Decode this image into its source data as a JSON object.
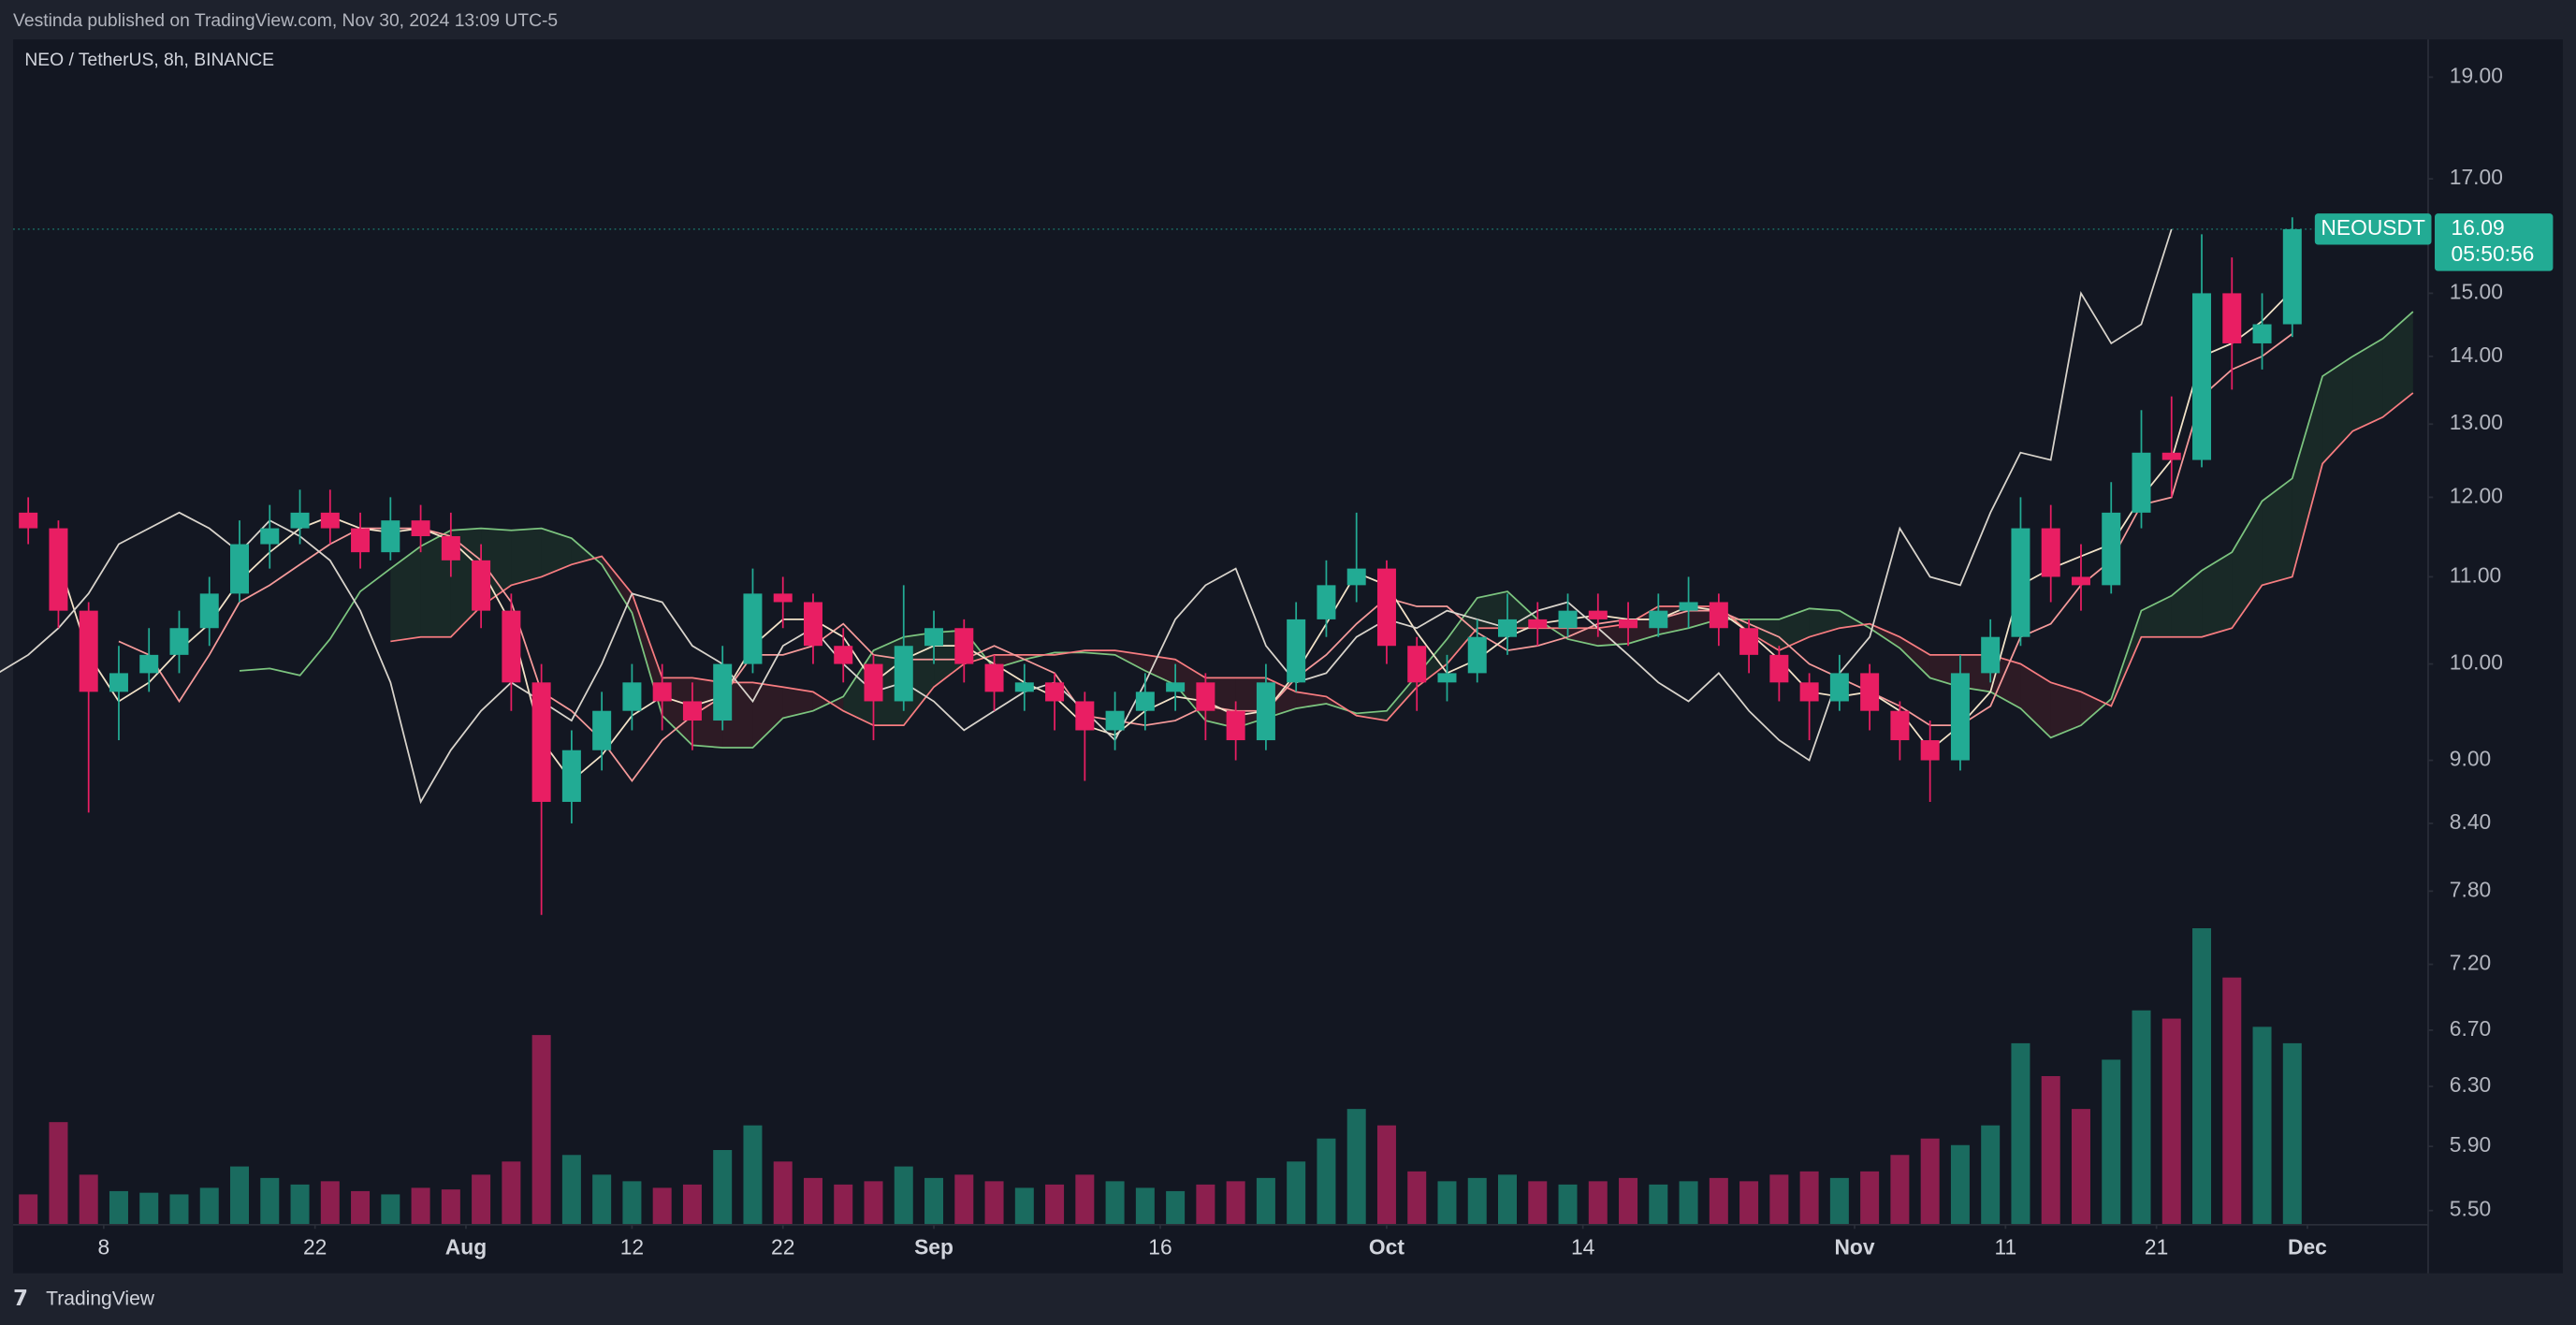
{
  "header": {
    "published": "Vestinda published on TradingView.com, Nov 30, 2024 13:09 UTC-5"
  },
  "footer": {
    "brand": "TradingView"
  },
  "chart_data": {
    "type": "candlestick",
    "title": "NEO / TetherUS, 8h, BINANCE",
    "symbol": "NEOUSDT",
    "countdown": "05:50:56",
    "x": [
      "2024-07-02",
      "2024-07-04",
      "2024-07-06",
      "2024-07-08",
      "2024-07-10",
      "2024-07-12",
      "2024-07-14",
      "2024-07-16",
      "2024-07-18",
      "2024-07-20",
      "2024-07-22",
      "2024-07-24",
      "2024-07-26",
      "2024-07-28",
      "2024-07-30",
      "2024-08-01",
      "2024-08-03",
      "2024-08-05",
      "2024-08-07",
      "2024-08-09",
      "2024-08-11",
      "2024-08-13",
      "2024-08-15",
      "2024-08-17",
      "2024-08-19",
      "2024-08-21",
      "2024-08-23",
      "2024-08-25",
      "2024-08-27",
      "2024-08-29",
      "2024-08-31",
      "2024-09-02",
      "2024-09-04",
      "2024-09-06",
      "2024-09-08",
      "2024-09-10",
      "2024-09-12",
      "2024-09-14",
      "2024-09-16",
      "2024-09-18",
      "2024-09-20",
      "2024-09-22",
      "2024-09-24",
      "2024-09-26",
      "2024-09-28",
      "2024-09-30",
      "2024-10-02",
      "2024-10-04",
      "2024-10-06",
      "2024-10-08",
      "2024-10-10",
      "2024-10-12",
      "2024-10-14",
      "2024-10-16",
      "2024-10-18",
      "2024-10-20",
      "2024-10-22",
      "2024-10-24",
      "2024-10-26",
      "2024-10-28",
      "2024-10-30",
      "2024-11-01",
      "2024-11-03",
      "2024-11-05",
      "2024-11-07",
      "2024-11-09",
      "2024-11-11",
      "2024-11-13",
      "2024-11-15",
      "2024-11-17",
      "2024-11-19",
      "2024-11-21",
      "2024-11-23",
      "2024-11-25",
      "2024-11-27",
      "2024-11-29"
    ],
    "open": [
      11.8,
      11.6,
      10.6,
      9.7,
      9.9,
      10.1,
      10.4,
      10.8,
      11.4,
      11.6,
      11.8,
      11.6,
      11.3,
      11.7,
      11.5,
      11.2,
      10.6,
      9.8,
      8.6,
      9.1,
      9.5,
      9.8,
      9.6,
      9.4,
      10.0,
      10.8,
      10.7,
      10.2,
      10.0,
      9.6,
      10.2,
      10.4,
      10.0,
      9.7,
      9.8,
      9.6,
      9.3,
      9.5,
      9.7,
      9.8,
      9.5,
      9.2,
      9.8,
      10.5,
      10.9,
      11.1,
      10.2,
      9.8,
      9.9,
      10.3,
      10.5,
      10.4,
      10.6,
      10.5,
      10.4,
      10.6,
      10.7,
      10.4,
      10.1,
      9.8,
      9.6,
      9.9,
      9.5,
      9.2,
      9.0,
      9.9,
      10.3,
      11.6,
      11.0,
      10.9,
      11.8,
      12.6,
      12.5,
      15.0,
      14.2,
      14.5
    ],
    "high": [
      12.0,
      11.7,
      10.7,
      10.2,
      10.4,
      10.6,
      11.0,
      11.7,
      11.9,
      12.1,
      12.1,
      11.8,
      12.0,
      11.9,
      11.8,
      11.4,
      10.8,
      10.0,
      9.3,
      9.7,
      10.0,
      10.0,
      9.8,
      10.2,
      11.1,
      11.0,
      10.8,
      10.4,
      10.1,
      10.9,
      10.6,
      10.5,
      10.1,
      10.0,
      9.9,
      9.7,
      9.7,
      9.9,
      10.0,
      9.9,
      9.6,
      10.0,
      10.7,
      11.2,
      11.8,
      11.2,
      10.3,
      10.1,
      10.5,
      10.8,
      10.7,
      10.8,
      10.8,
      10.7,
      10.8,
      11.0,
      10.8,
      10.5,
      10.2,
      9.9,
      10.1,
      10.0,
      9.6,
      9.4,
      10.1,
      10.5,
      12.0,
      11.9,
      11.4,
      12.2,
      13.2,
      13.4,
      16.0,
      15.6,
      15.0,
      16.3
    ],
    "low": [
      11.4,
      10.4,
      8.5,
      9.2,
      9.7,
      9.9,
      10.2,
      10.7,
      11.1,
      11.4,
      11.4,
      11.1,
      11.2,
      11.3,
      11.0,
      10.4,
      9.5,
      7.6,
      8.4,
      8.9,
      9.3,
      9.3,
      9.1,
      9.3,
      9.9,
      10.4,
      10.0,
      9.8,
      9.2,
      9.5,
      10.0,
      9.8,
      9.5,
      9.5,
      9.3,
      8.8,
      9.1,
      9.3,
      9.5,
      9.2,
      9.0,
      9.1,
      9.7,
      10.3,
      10.7,
      10.0,
      9.5,
      9.6,
      9.8,
      10.1,
      10.2,
      10.3,
      10.3,
      10.2,
      10.3,
      10.4,
      10.2,
      9.9,
      9.6,
      9.2,
      9.5,
      9.3,
      9.0,
      8.6,
      8.9,
      9.8,
      10.2,
      10.7,
      10.6,
      10.8,
      11.6,
      12.0,
      12.4,
      13.5,
      13.8,
      14.3
    ],
    "close": [
      11.6,
      10.6,
      9.7,
      9.9,
      10.1,
      10.4,
      10.8,
      11.4,
      11.6,
      11.8,
      11.6,
      11.3,
      11.7,
      11.5,
      11.2,
      10.6,
      9.8,
      8.6,
      9.1,
      9.5,
      9.8,
      9.6,
      9.4,
      10.0,
      10.8,
      10.7,
      10.2,
      10.0,
      9.6,
      10.2,
      10.4,
      10.0,
      9.7,
      9.8,
      9.6,
      9.3,
      9.5,
      9.7,
      9.8,
      9.5,
      9.2,
      9.8,
      10.5,
      10.9,
      11.1,
      10.2,
      9.8,
      9.9,
      10.3,
      10.5,
      10.4,
      10.6,
      10.5,
      10.4,
      10.6,
      10.7,
      10.4,
      10.1,
      9.8,
      9.6,
      9.9,
      9.5,
      9.2,
      9.0,
      9.9,
      10.3,
      11.6,
      11.0,
      10.9,
      11.8,
      12.6,
      12.5,
      15.0,
      14.2,
      14.5,
      16.09
    ],
    "volume": [
      180,
      620,
      300,
      200,
      190,
      180,
      220,
      350,
      280,
      240,
      260,
      200,
      180,
      220,
      210,
      300,
      380,
      1150,
      420,
      300,
      260,
      220,
      240,
      450,
      600,
      380,
      280,
      240,
      260,
      350,
      280,
      300,
      260,
      220,
      240,
      300,
      260,
      220,
      200,
      240,
      260,
      280,
      380,
      520,
      700,
      600,
      320,
      260,
      280,
      300,
      260,
      240,
      260,
      280,
      240,
      260,
      280,
      260,
      300,
      320,
      280,
      320,
      420,
      520,
      480,
      600,
      1100,
      900,
      700,
      1000,
      1300,
      1250,
      1800,
      1500,
      1200,
      1100
    ],
    "up_color": "#22ab94",
    "down_color": "#e91e63",
    "volume_up_color": "#1a6b5f",
    "volume_down_color": "#8c1f4e",
    "xlim": [
      "2024-07-02",
      "2024-12-09"
    ],
    "ylim": [
      5.42,
      19.8
    ],
    "log_scale": true,
    "yticks": [
      {
        "value": 19,
        "label": "19.00"
      },
      {
        "value": 17,
        "label": "17.00"
      },
      {
        "value": 15,
        "label": "15.00"
      },
      {
        "value": 14,
        "label": "14.00"
      },
      {
        "value": 13,
        "label": "13.00"
      },
      {
        "value": 12,
        "label": "12.00"
      },
      {
        "value": 11,
        "label": "11.00"
      },
      {
        "value": 10,
        "label": "10.00"
      },
      {
        "value": 9,
        "label": "9.00"
      },
      {
        "value": 8.4,
        "label": "8.40"
      },
      {
        "value": 7.8,
        "label": "7.80"
      },
      {
        "value": 7.2,
        "label": "7.20"
      },
      {
        "value": 6.7,
        "label": "6.70"
      },
      {
        "value": 6.3,
        "label": "6.30"
      },
      {
        "value": 5.9,
        "label": "5.90"
      },
      {
        "value": 5.5,
        "label": "5.50"
      }
    ],
    "xticks": [
      {
        "value": "2024-07-08",
        "label": "8"
      },
      {
        "value": "2024-07-22",
        "label": "22"
      },
      {
        "value": "2024-08-01",
        "label": "Aug"
      },
      {
        "value": "2024-08-12",
        "label": "12"
      },
      {
        "value": "2024-08-22",
        "label": "22"
      },
      {
        "value": "2024-09-01",
        "label": "Sep"
      },
      {
        "value": "2024-09-16",
        "label": "16"
      },
      {
        "value": "2024-10-01",
        "label": "Oct"
      },
      {
        "value": "2024-10-14",
        "label": "14"
      },
      {
        "value": "2024-11-01",
        "label": "Nov"
      },
      {
        "value": "2024-11-11",
        "label": "11"
      },
      {
        "value": "2024-11-21",
        "label": "21"
      },
      {
        "value": "2024-12-01",
        "label": "Dec"
      }
    ],
    "ichimoku": {
      "conversion_periods": 2,
      "base_periods": 4,
      "span_b_periods": 9,
      "displacement": 4,
      "conversion_color": "#f3e3c8",
      "base_color": "#f59a9a",
      "span_a_color": "#7cc47f",
      "span_b_color": "#f77c80",
      "lagging_color": "#d9d4cc",
      "cloud_up_color": "rgba(76,175,80,0.12)",
      "cloud_down_color": "rgba(242,54,69,0.12)"
    }
  }
}
